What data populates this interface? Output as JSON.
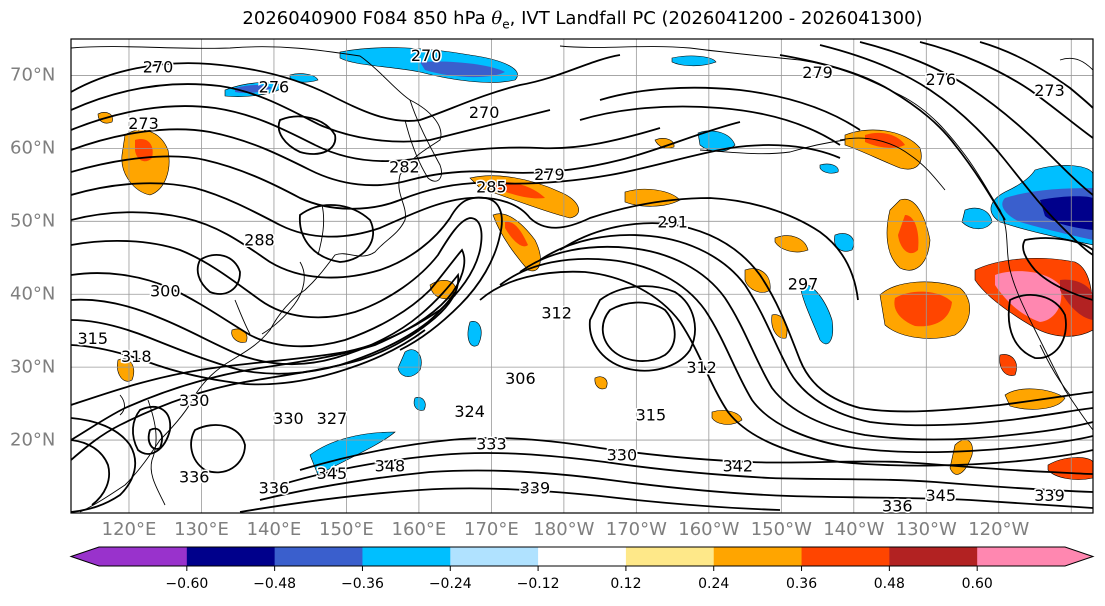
{
  "title_prefix": "2026040900 F084 850 hPa ",
  "title_theta": "θ",
  "title_sub": "e",
  "title_suffix": ", IVT Landfall PC (2026041200 - 2026041300)",
  "map": {
    "lat_labels": [
      "70°N",
      "60°N",
      "50°N",
      "40°N",
      "30°N",
      "20°N"
    ],
    "lat_values": [
      70,
      60,
      50,
      40,
      30,
      20
    ],
    "lon_labels": [
      "120°E",
      "130°E",
      "140°E",
      "150°E",
      "160°E",
      "170°E",
      "180°W",
      "170°W",
      "160°W",
      "150°W",
      "140°W",
      "130°W",
      "120°W"
    ],
    "lat_range": [
      10,
      75
    ],
    "lon_range": [
      112,
      253
    ]
  },
  "colorbar": {
    "tick_labels": [
      "−0.60",
      "−0.48",
      "−0.36",
      "−0.24",
      "−0.12",
      "0.12",
      "0.24",
      "0.36",
      "0.48",
      "0.60"
    ],
    "boundaries": [
      -0.72,
      -0.6,
      -0.48,
      -0.36,
      -0.24,
      -0.12,
      0.12,
      0.24,
      0.36,
      0.48,
      0.6,
      0.72
    ],
    "colors": [
      "#9932cc",
      "#00008b",
      "#3a5fcd",
      "#00bfff",
      "#b0e2ff",
      "#ffffff",
      "#fee889",
      "#ffa500",
      "#ff4500",
      "#b22222",
      "#ff87b0"
    ],
    "under_color": "#9932cc",
    "over_color": "#ff87b0"
  },
  "contour_labels": [
    {
      "text": "270",
      "lat": 71.2,
      "lon": 124
    },
    {
      "text": "276",
      "lat": 68.5,
      "lon": 140
    },
    {
      "text": "273",
      "lat": 63.5,
      "lon": 122
    },
    {
      "text": "270",
      "lat": 72.8,
      "lon": 161
    },
    {
      "text": "270",
      "lat": 65,
      "lon": 169
    },
    {
      "text": "282",
      "lat": 57.5,
      "lon": 158
    },
    {
      "text": "285",
      "lat": 54.8,
      "lon": 170
    },
    {
      "text": "279",
      "lat": 56.5,
      "lon": 178
    },
    {
      "text": "291",
      "lat": 50,
      "lon": 195
    },
    {
      "text": "297",
      "lat": 41.5,
      "lon": 213
    },
    {
      "text": "288",
      "lat": 47.5,
      "lon": 138
    },
    {
      "text": "300",
      "lat": 40.5,
      "lon": 125
    },
    {
      "text": "312",
      "lat": 37.5,
      "lon": 179
    },
    {
      "text": "306",
      "lat": 28.5,
      "lon": 174
    },
    {
      "text": "312",
      "lat": 30,
      "lon": 199
    },
    {
      "text": "315",
      "lat": 34,
      "lon": 115
    },
    {
      "text": "318",
      "lat": 31.5,
      "lon": 121
    },
    {
      "text": "330",
      "lat": 25.5,
      "lon": 129
    },
    {
      "text": "327",
      "lat": 23,
      "lon": 148
    },
    {
      "text": "330",
      "lat": 23,
      "lon": 142
    },
    {
      "text": "324",
      "lat": 24,
      "lon": 167
    },
    {
      "text": "333",
      "lat": 19.5,
      "lon": 170
    },
    {
      "text": "315",
      "lat": 23.5,
      "lon": 192
    },
    {
      "text": "330",
      "lat": 18,
      "lon": 188
    },
    {
      "text": "342",
      "lat": 16.5,
      "lon": 204
    },
    {
      "text": "348",
      "lat": 16.5,
      "lon": 156
    },
    {
      "text": "345",
      "lat": 15.5,
      "lon": 148
    },
    {
      "text": "339",
      "lat": 13.5,
      "lon": 176
    },
    {
      "text": "336",
      "lat": 15,
      "lon": 129
    },
    {
      "text": "336",
      "lat": 13.5,
      "lon": 140
    },
    {
      "text": "336",
      "lat": 11,
      "lon": 226
    },
    {
      "text": "345",
      "lat": 12.5,
      "lon": 232
    },
    {
      "text": "339",
      "lat": 12.5,
      "lon": 247
    },
    {
      "text": "279",
      "lat": 70.5,
      "lon": 215
    },
    {
      "text": "276",
      "lat": 69.5,
      "lon": 232
    },
    {
      "text": "273",
      "lat": 68,
      "lon": 247
    }
  ]
}
